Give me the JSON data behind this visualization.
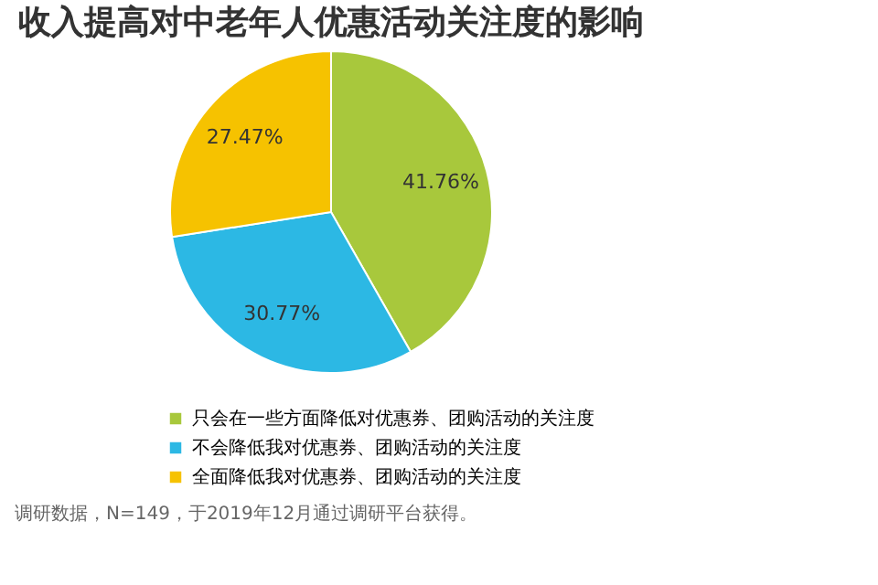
{
  "chart_data": {
    "type": "pie",
    "title": "收入提高对中老年人优惠活动关注度的影响",
    "categories": [
      "只会在一些方面降低对优惠券、团购活动的关注度",
      "不会降低我对优惠券、团购活动的关注度",
      "全面降低我对优惠券、团购活动的关注度"
    ],
    "values": [
      41.76,
      30.77,
      27.47
    ],
    "value_labels": [
      "41.76%",
      "30.77%",
      "27.47%"
    ],
    "colors": [
      "#a8c83c",
      "#2cb8e4",
      "#f6c200"
    ],
    "legend": "bottom",
    "annotations": [
      "调研数据，N=149，于2019年12月通过调研平台获得。"
    ]
  }
}
